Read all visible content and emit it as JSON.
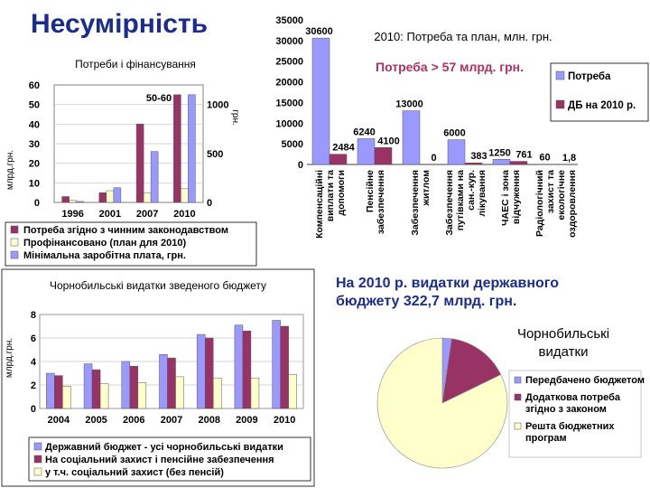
{
  "slide": {
    "title": "Несумірність",
    "note": "На 2010 р. видатки державного бюджету 322,7 млрд. грн."
  },
  "colors": {
    "blue": "#9999ff",
    "maroon": "#993366",
    "cream": "#ffffcc",
    "title_blue": "#1a2d8c"
  },
  "chart_data": [
    {
      "id": "needs",
      "type": "bar",
      "title": "Потреби і фінансування",
      "ylabel": "млрд.грн.",
      "y2label": "грн.",
      "categories": [
        "1996",
        "2001",
        "2007",
        "2010"
      ],
      "ylim": [
        0,
        60
      ],
      "yticks": [
        0,
        10,
        20,
        30,
        40,
        50,
        60
      ],
      "y2lim": [
        0,
        1200
      ],
      "y2ticks": [
        "0",
        "500",
        "1000"
      ],
      "annotations": [
        "50-60"
      ],
      "grid": true,
      "legend_position": "bottom",
      "series": [
        {
          "name": "Потреба згідно з чинним законодавством",
          "color": "#993366",
          "axis": "left",
          "values": [
            3,
            5,
            40,
            55
          ]
        },
        {
          "name": "Профінансовано (план для 2010)",
          "color": "#ffffcc",
          "axis": "left",
          "values": [
            1,
            6,
            5,
            7
          ]
        },
        {
          "name": "Мінімальна заробітна плата, грн.",
          "color": "#9999ff",
          "axis": "right",
          "values": [
            10,
            150,
            520,
            1100
          ]
        }
      ]
    },
    {
      "id": "needs2010",
      "type": "bar",
      "title": "2010: Потреба та план, млн. грн.",
      "subtitle": "Потреба > 57 млрд. грн.",
      "ylim": [
        0,
        35000
      ],
      "yticks": [
        "0",
        "5000",
        "10000",
        "15000",
        "20000",
        "25000",
        "30000",
        "35000"
      ],
      "categories": [
        "Компенсаційні виплати та допомоги",
        "Пенсійне забезпечення",
        "Забезпечення житлом",
        "Забезпечення путівками на сан.-кур. лікування",
        "ЧАЕС і зона відчуження",
        "Радіологічний захист та екологічне оздоровлення"
      ],
      "legend_position": "right",
      "series": [
        {
          "name": "Потреба",
          "color": "#9999ff",
          "values": [
            30600,
            6240,
            13000,
            6000,
            1250,
            60
          ],
          "labels": [
            "30600",
            "6240",
            "13000",
            "6000",
            "1250",
            "60"
          ]
        },
        {
          "name": "ДБ на 2010 р.",
          "color": "#993366",
          "values": [
            2484,
            4100,
            0,
            383,
            761,
            1.8
          ],
          "labels": [
            "2484",
            "4100",
            "0",
            "383",
            "761",
            "1,8"
          ]
        }
      ]
    },
    {
      "id": "budget",
      "type": "bar",
      "title": "Чорнобильські видатки зведеного бюджету",
      "ylabel": "млрд.грн.",
      "categories": [
        "2004",
        "2005",
        "2006",
        "2007",
        "2008",
        "2009",
        "2010"
      ],
      "ylim": [
        0,
        8
      ],
      "yticks": [
        0,
        2,
        4,
        6,
        8
      ],
      "grid": true,
      "legend_position": "bottom",
      "series": [
        {
          "name": "Державний бюджет - усі чорнобильські видатки",
          "color": "#9999ff",
          "values": [
            3.0,
            3.8,
            4.0,
            4.6,
            6.3,
            7.1,
            7.5
          ]
        },
        {
          "name": "На соціальний захист і пенсійне забезпечення",
          "color": "#993366",
          "values": [
            2.8,
            3.3,
            3.6,
            4.3,
            6.0,
            6.6,
            7.0
          ]
        },
        {
          "name": "у т.ч. соціальний захист (без пенсій)",
          "color": "#ffffcc",
          "values": [
            1.9,
            2.1,
            2.2,
            2.7,
            2.6,
            2.6,
            2.9
          ]
        }
      ]
    },
    {
      "id": "pie",
      "type": "pie",
      "title": "Чорнобильські видатки",
      "legend_position": "bottom",
      "labels": [
        "Передбачено бюджетом",
        "Додаткова потреба згідно з законом",
        "Решта бюджетних програм"
      ],
      "colors": [
        "#9999ff",
        "#993366",
        "#ffffcc"
      ],
      "values": [
        2.3,
        15.5,
        82.2
      ]
    }
  ]
}
